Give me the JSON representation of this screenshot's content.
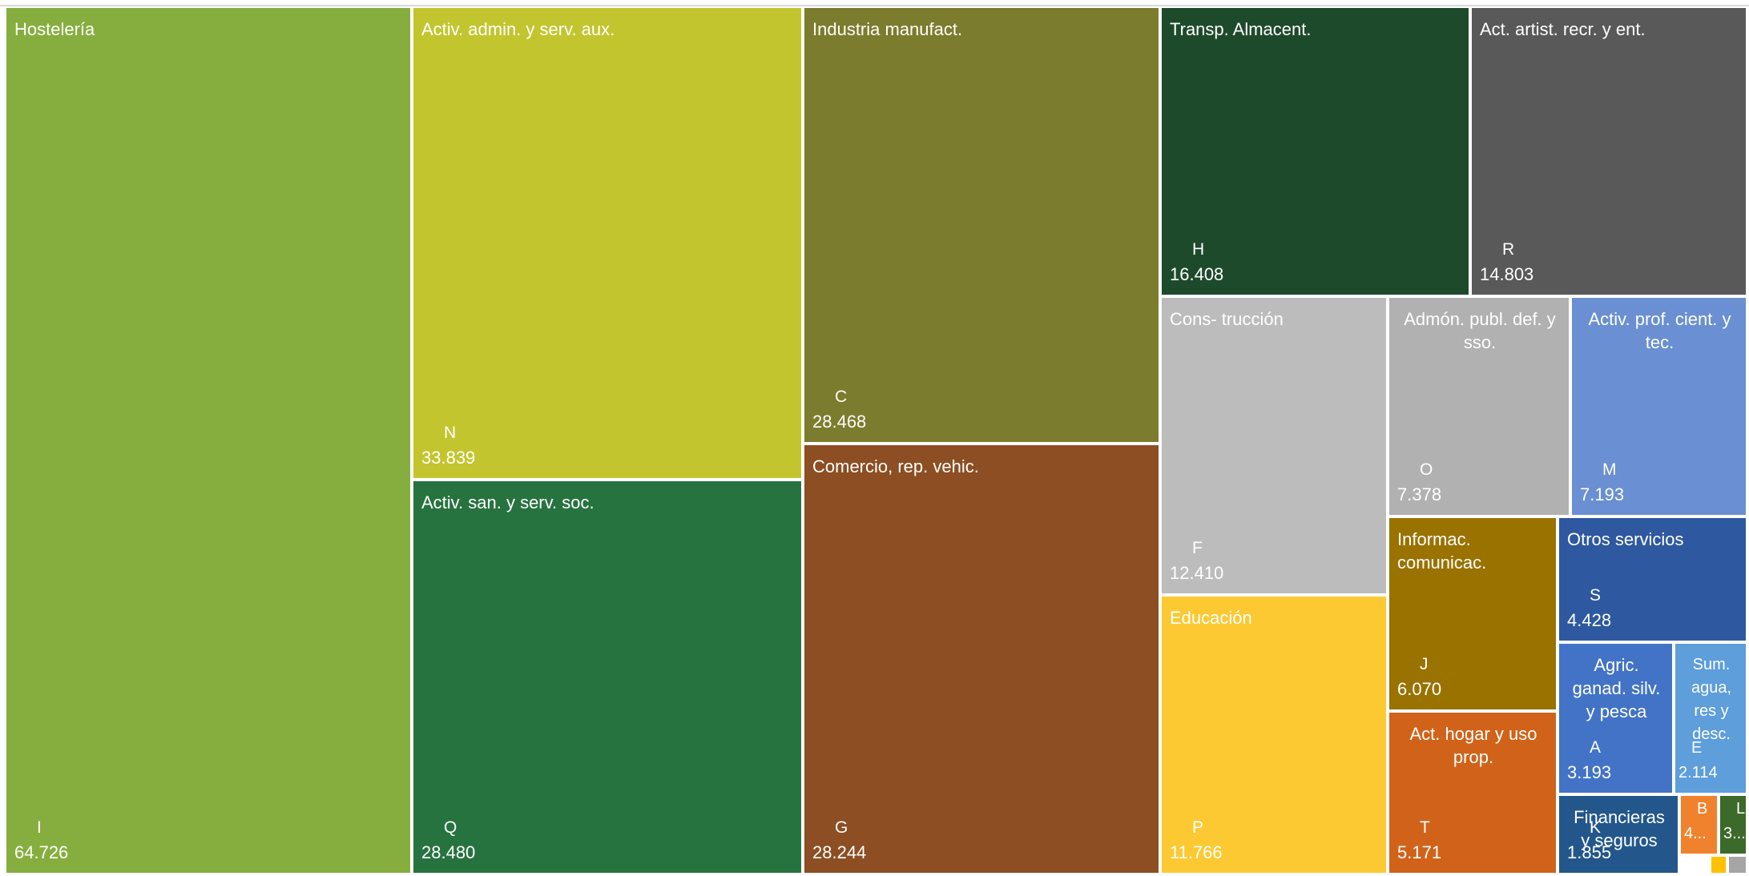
{
  "chart_data": {
    "type": "treemap",
    "title": "",
    "items": [
      {
        "label": "Hostelería",
        "code": "I",
        "value": "64.726",
        "color": "#86ae3e"
      },
      {
        "label": "Activ. admin. y serv. aux.",
        "code": "N",
        "value": "33.839",
        "color": "#c3c52f"
      },
      {
        "label": "Activ. san. y serv. soc.",
        "code": "Q",
        "value": "28.480",
        "color": "#277340"
      },
      {
        "label": "Industria manufact.",
        "code": "C",
        "value": "28.468",
        "color": "#7c7c2e"
      },
      {
        "label": "Comercio, rep. vehic.",
        "code": "G",
        "value": "28.244",
        "color": "#8c4e22"
      },
      {
        "label": "Transp.  Almacent.",
        "code": "H",
        "value": "16.408",
        "color": "#1e4a2c"
      },
      {
        "label": "Act. artist. recr. y ent.",
        "code": "R",
        "value": "14.803",
        "color": "#595959"
      },
      {
        "label": "Cons- trucción",
        "code": "F",
        "value": "12.410",
        "color": "#bcbcbc"
      },
      {
        "label": "Educación",
        "code": "P",
        "value": "11.766",
        "color": "#fcc932"
      },
      {
        "label": "Admón. publ. def. y sso.",
        "code": "O",
        "value": "7.378",
        "color": "#b1b1b1"
      },
      {
        "label": "Activ. prof. cient. y tec.",
        "code": "M",
        "value": "7.193",
        "color": "#6a8fd2"
      },
      {
        "label": "Informac. comunicac.",
        "code": "J",
        "value": "6.070",
        "color": "#997200"
      },
      {
        "label": "Otros servicios",
        "code": "S",
        "value": "4.428",
        "color": "#2e58a0"
      },
      {
        "label": "Act. hogar y uso prop.",
        "code": "T",
        "value": "5.171",
        "color": "#d06319"
      },
      {
        "label": "Agric. ganad. silv. y pesca",
        "code": "A",
        "value": "3.193",
        "color": "#4273c6"
      },
      {
        "label": "Sum. agua, res y desc.",
        "code": "E",
        "value": "2.114",
        "color": "#5d9edb"
      },
      {
        "label": "Financieras y seguros",
        "code": "K",
        "value": "1.855",
        "color": "#23578c"
      },
      {
        "label": "",
        "code": "B",
        "value": "4...",
        "color": "#f0822e"
      },
      {
        "label": "",
        "code": "L",
        "value": "3...",
        "color": "#3b6a2a"
      },
      {
        "label": "",
        "code": "",
        "value": "",
        "color": "#ffc000"
      },
      {
        "label": "",
        "code": "",
        "value": "",
        "color": "#a5a5a5"
      }
    ]
  }
}
